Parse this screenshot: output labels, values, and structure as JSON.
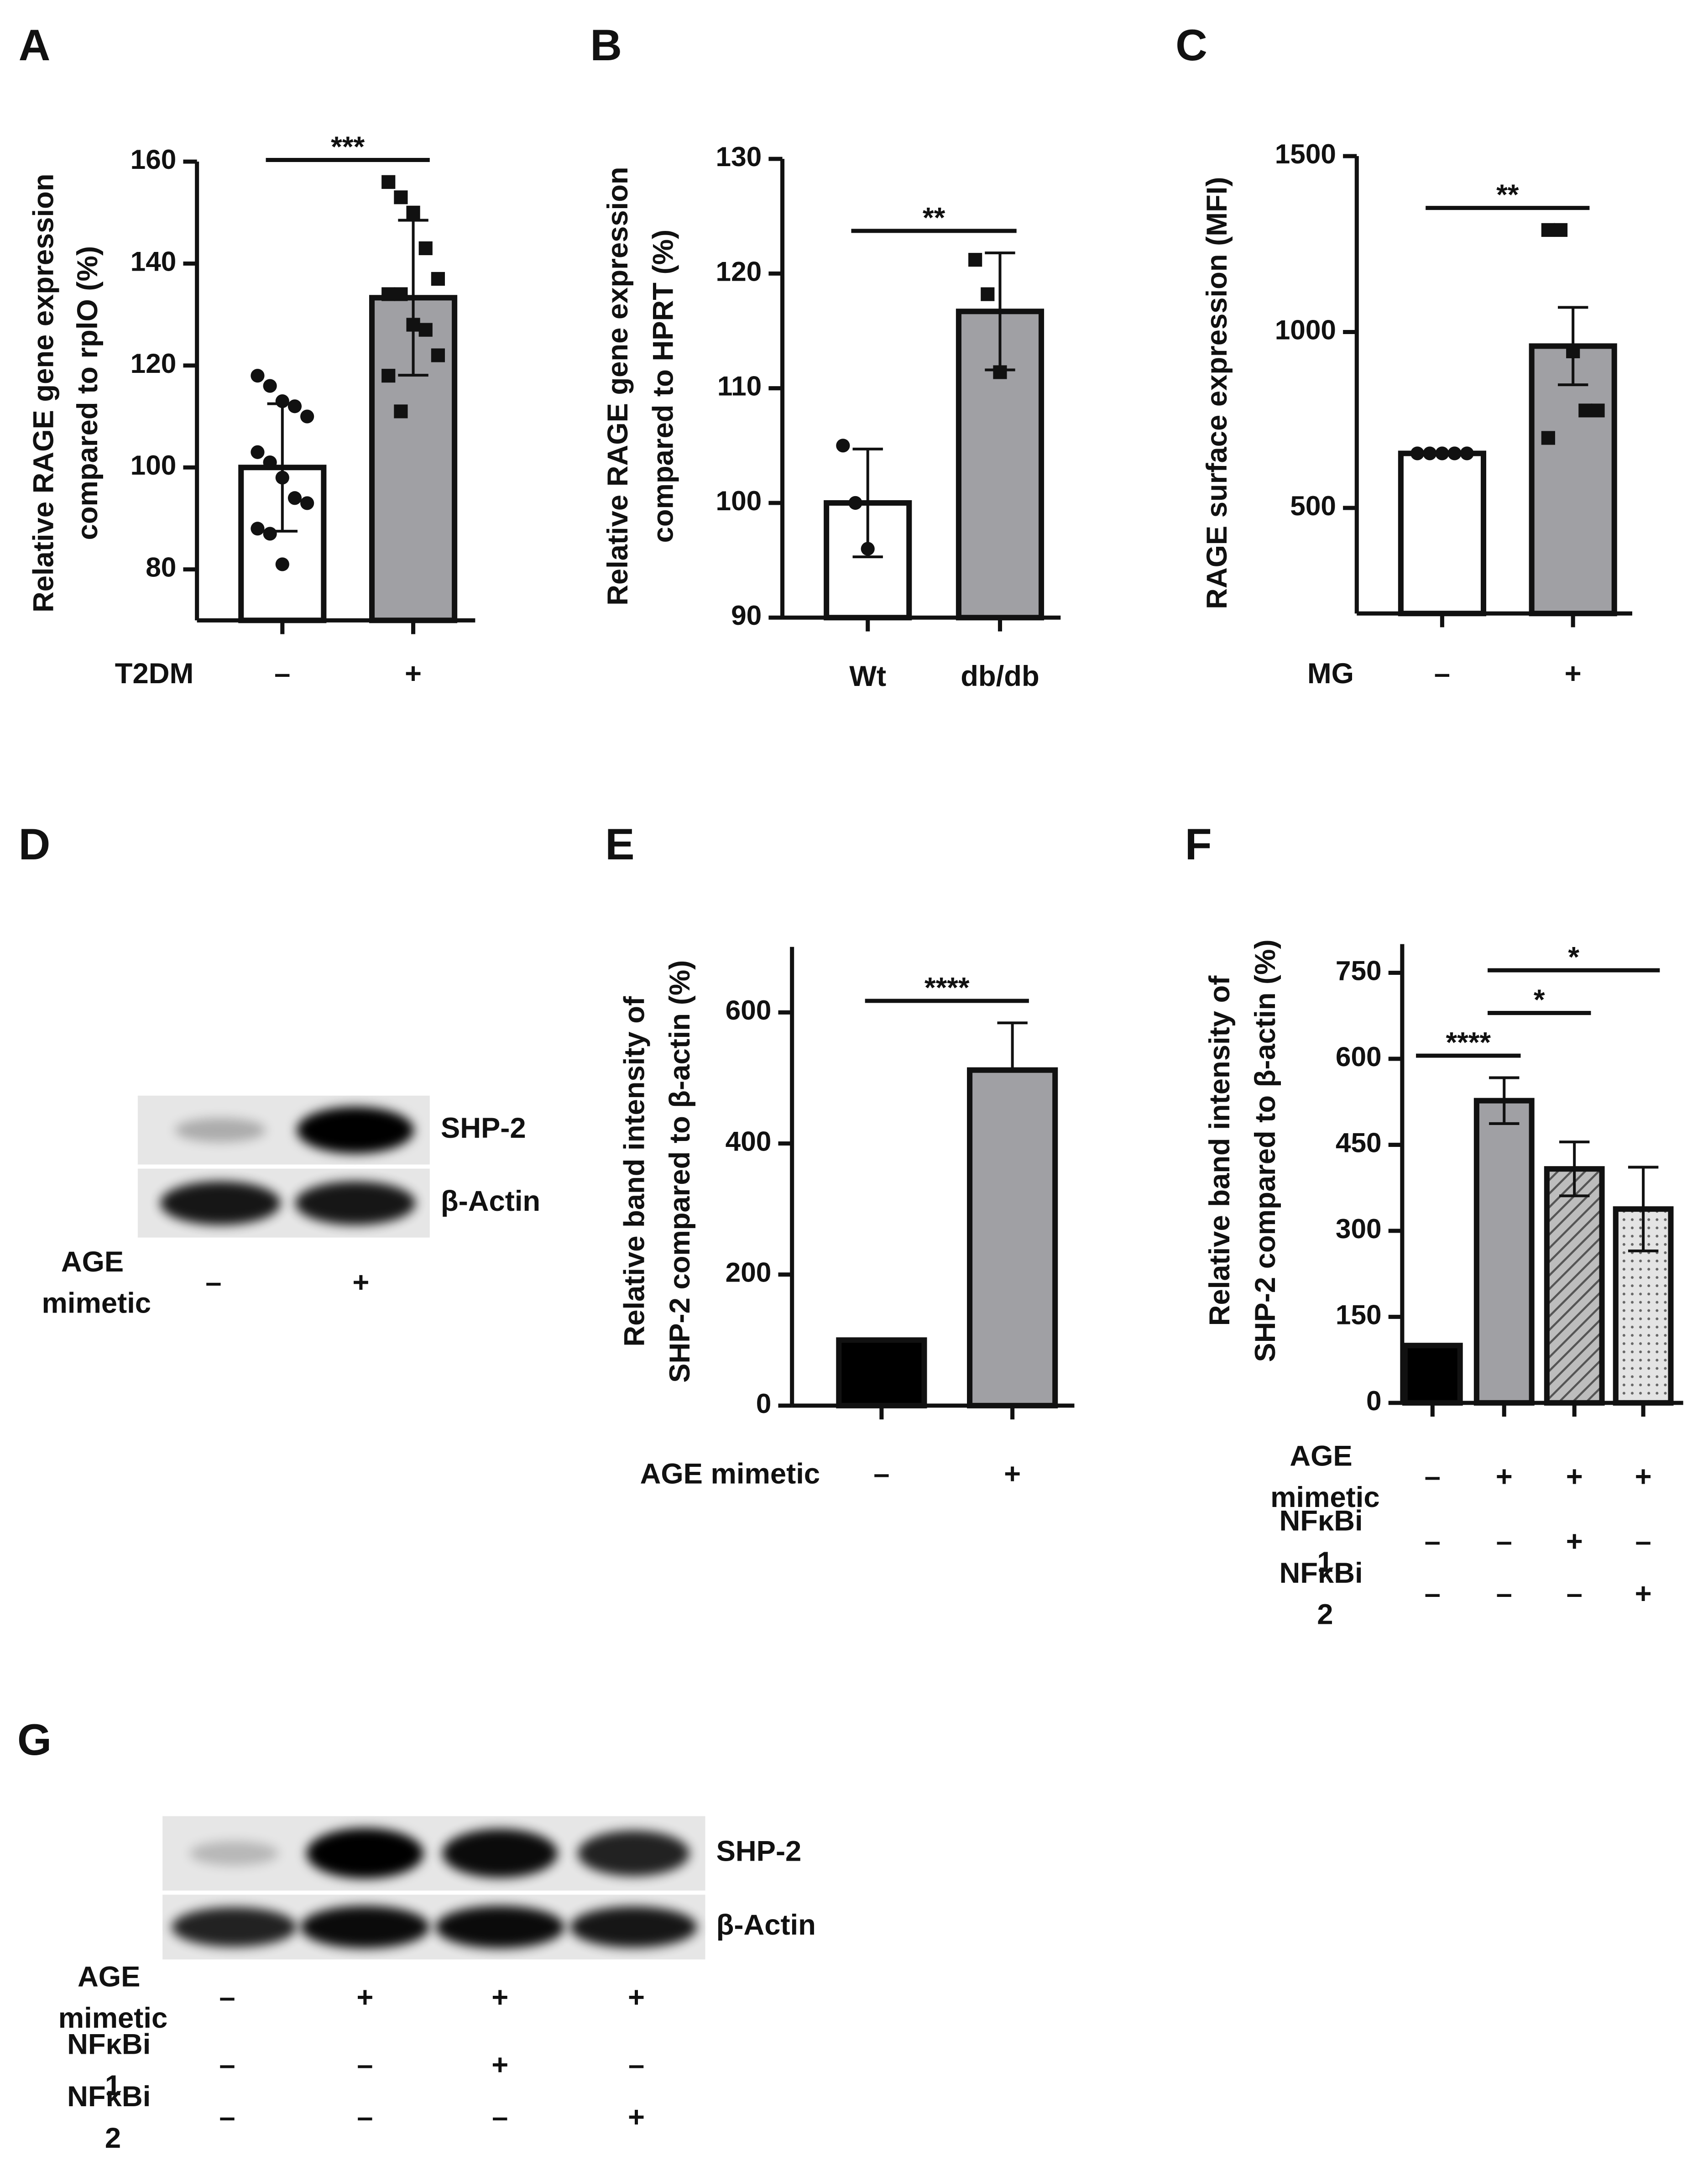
{
  "chart_data": [
    {
      "panel": "A",
      "type": "bar",
      "ylabel": [
        "Relative RAGE gene expression",
        "compared to rplO (%)"
      ],
      "treatments": [
        {
          "label": "T2DM",
          "values": [
            "–",
            "+"
          ]
        }
      ],
      "values": [
        100,
        133.3
      ],
      "errors": [
        12.5,
        15.2
      ],
      "error_direction": "both",
      "colors": [
        "#ffffff",
        "#a0a0a4"
      ],
      "points": [
        [
          118,
          116,
          113,
          112,
          110,
          103,
          101,
          98,
          94,
          93,
          88,
          87,
          81
        ],
        [
          156,
          153,
          150,
          143,
          137,
          134,
          134,
          128,
          127,
          122,
          118,
          111
        ]
      ],
      "markers": [
        "circle",
        "square"
      ],
      "ylim": [
        70,
        160
      ],
      "yticks": [
        80,
        100,
        120,
        140,
        160
      ],
      "significance": [
        {
          "label": "***",
          "between": [
            0,
            1
          ]
        }
      ]
    },
    {
      "panel": "B",
      "type": "bar",
      "ylabel": [
        "Relative RAGE gene expression",
        "compared to HPRT (%)"
      ],
      "categories": [
        "Wt",
        "db/db"
      ],
      "values": [
        100,
        116.7
      ],
      "errors": [
        4.7,
        5.1
      ],
      "error_direction": "both",
      "colors": [
        "#ffffff",
        "#a0a0a4"
      ],
      "points": [
        [
          105,
          100,
          96
        ],
        [
          121.2,
          118.2,
          111.4
        ]
      ],
      "markers": [
        "circle",
        "square"
      ],
      "ylim": [
        90,
        130
      ],
      "yticks": [
        90,
        100,
        110,
        120,
        130
      ],
      "significance": [
        {
          "label": "**",
          "between": [
            0,
            1
          ]
        }
      ]
    },
    {
      "panel": "C",
      "type": "bar",
      "ylabel": [
        "RAGE surface expression (MFI)"
      ],
      "treatments": [
        {
          "label": "MG",
          "values": [
            "–",
            "+"
          ]
        }
      ],
      "values": [
        655,
        960
      ],
      "errors": [
        null,
        110
      ],
      "error_direction": "both",
      "colors": [
        "#ffffff",
        "#a0a0a4"
      ],
      "points": [
        [
          655,
          655,
          655,
          655,
          655
        ],
        [
          1290,
          1290,
          945,
          777,
          777,
          699
        ]
      ],
      "markers": [
        "circle",
        "square"
      ],
      "ylim": [
        200,
        1500
      ],
      "yticks": [
        500,
        1000,
        1500
      ],
      "significance": [
        {
          "label": "**",
          "between": [
            0,
            1
          ]
        }
      ]
    },
    {
      "panel": "E",
      "type": "bar",
      "ylabel": [
        "Relative band intensity of",
        "SHP-2 compared to β-actin (%)"
      ],
      "treatments": [
        {
          "label": "AGE mimetic",
          "values": [
            "–",
            "+"
          ]
        }
      ],
      "values": [
        100,
        512
      ],
      "errors": [
        null,
        72
      ],
      "error_direction": "up",
      "colors": [
        "#000000",
        "#a0a0a4"
      ],
      "ylim": [
        0,
        700
      ],
      "yticks": [
        0,
        200,
        400,
        600
      ],
      "significance": [
        {
          "label": "****",
          "between": [
            0,
            1
          ]
        }
      ]
    },
    {
      "panel": "F",
      "type": "bar",
      "ylabel": [
        "Relative band intensity of",
        "SHP-2 compared to β-actin (%)"
      ],
      "treatments": [
        {
          "label": "AGE mimetic",
          "values": [
            "–",
            "+",
            "+",
            "+"
          ]
        },
        {
          "label": "NFκBi 1",
          "values": [
            "–",
            "–",
            "+",
            "–"
          ]
        },
        {
          "label": "NFκBi 2",
          "values": [
            "–",
            "–",
            "–",
            "+"
          ]
        }
      ],
      "values": [
        100,
        527,
        408,
        338
      ],
      "errors": [
        null,
        40,
        47,
        73
      ],
      "error_direction": "both",
      "colors": [
        "#000000",
        "#a0a0a4",
        "#a0a0a4",
        "#e0e0e0"
      ],
      "patterns": [
        null,
        null,
        "hatch",
        "dots"
      ],
      "ylim": [
        0,
        800
      ],
      "yticks": [
        0,
        150,
        300,
        450,
        600,
        750
      ],
      "significance": [
        {
          "label": "****",
          "between": [
            0,
            1
          ]
        },
        {
          "label": "*",
          "between": [
            1,
            2
          ]
        },
        {
          "label": "*",
          "between": [
            1,
            3
          ]
        }
      ]
    }
  ],
  "blots": [
    {
      "panel": "D",
      "bands": [
        "SHP-2",
        "β-Actin"
      ],
      "treatments": [
        {
          "label": "AGE mimetic",
          "values": [
            "–",
            "+"
          ]
        }
      ]
    },
    {
      "panel": "G",
      "bands": [
        "SHP-2",
        "β-Actin"
      ],
      "treatments": [
        {
          "label": "AGE mimetic",
          "values": [
            "–",
            "+",
            "+",
            "+"
          ]
        },
        {
          "label": "NFκBi 1",
          "values": [
            "–",
            "–",
            "+",
            "–"
          ]
        },
        {
          "label": "NFκBi 2",
          "values": [
            "–",
            "–",
            "–",
            "+"
          ]
        }
      ]
    }
  ]
}
